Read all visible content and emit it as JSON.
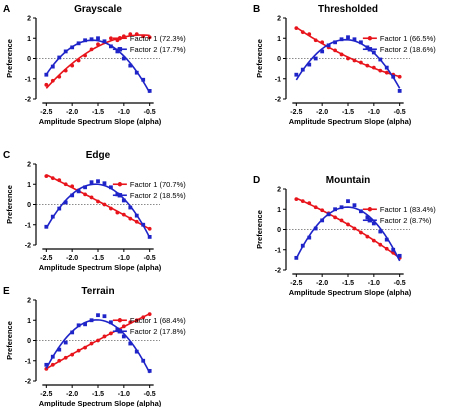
{
  "colors": {
    "factor1": "#e8141c",
    "factor2": "#1f24c8",
    "axis": "#000000",
    "zero_line": "#666666"
  },
  "chart_data": [
    {
      "type": "scatter",
      "letter": "A",
      "title": "Grayscale",
      "xlabel": "Amplitude Spectrum Slope (alpha)",
      "ylabel": "Preference",
      "xlim": [
        -2.7,
        -0.3
      ],
      "ylim": [
        -2,
        2
      ],
      "xticks": [
        "-2.5",
        "-2.0",
        "-1.5",
        "-1.0",
        "-0.5"
      ],
      "xtick_values": [
        -2.5,
        -2.0,
        -1.5,
        -1.0,
        -0.5
      ],
      "yticks": [
        "-2",
        "-1",
        "0",
        "1",
        "2"
      ],
      "ytick_values": [
        -2,
        -1,
        0,
        1,
        2
      ],
      "zero_line": "dotted",
      "legend_position": "right",
      "series": [
        {
          "name": "Factor 1 (72.3%)",
          "marker": "circle",
          "x": [
            -2.5,
            -2.375,
            -2.25,
            -2.125,
            -2.0,
            -1.875,
            -1.75,
            -1.625,
            -1.5,
            -1.375,
            -1.25,
            -1.125,
            -1.0,
            -0.875,
            -0.75,
            -0.625,
            -0.5
          ],
          "y": [
            -1.3,
            -1.1,
            -0.9,
            -0.6,
            -0.35,
            -0.1,
            0.15,
            0.45,
            0.7,
            0.8,
            1.0,
            0.9,
            1.1,
            1.2,
            1.2,
            1.1,
            1.05
          ]
        },
        {
          "name": "Factor 2 (17.7%)",
          "marker": "square",
          "x": [
            -2.5,
            -2.375,
            -2.25,
            -2.125,
            -2.0,
            -1.875,
            -1.75,
            -1.625,
            -1.5,
            -1.375,
            -1.25,
            -1.125,
            -1.0,
            -0.875,
            -0.75,
            -0.625,
            -0.5
          ],
          "y": [
            -0.8,
            -0.4,
            0.05,
            0.35,
            0.55,
            0.75,
            0.9,
            0.95,
            1.0,
            0.85,
            0.6,
            0.35,
            0.0,
            -0.35,
            -0.7,
            -1.05,
            -1.6
          ]
        }
      ]
    },
    {
      "type": "scatter",
      "letter": "B",
      "title": "Thresholded",
      "xlabel": "Amplitude Spectrum Slope (alpha)",
      "ylabel": "Preference",
      "xlim": [
        -2.7,
        -0.3
      ],
      "ylim": [
        -2,
        2
      ],
      "xticks": [
        "-2.5",
        "-2.0",
        "-1.5",
        "-1.0",
        "-0.5"
      ],
      "xtick_values": [
        -2.5,
        -2.0,
        -1.5,
        -1.0,
        -0.5
      ],
      "yticks": [
        "-2",
        "-1",
        "0",
        "1",
        "2"
      ],
      "ytick_values": [
        -2,
        -1,
        0,
        1,
        2
      ],
      "zero_line": "dotted",
      "legend_position": "right",
      "series": [
        {
          "name": "Factor 1 (66.5%)",
          "marker": "circle",
          "x": [
            -2.5,
            -2.375,
            -2.25,
            -2.125,
            -2.0,
            -1.875,
            -1.75,
            -1.625,
            -1.5,
            -1.375,
            -1.25,
            -1.125,
            -1.0,
            -0.875,
            -0.75,
            -0.625,
            -0.5
          ],
          "y": [
            1.5,
            1.3,
            1.2,
            0.9,
            0.8,
            0.55,
            0.4,
            0.2,
            0.0,
            -0.1,
            -0.2,
            -0.35,
            -0.45,
            -0.6,
            -0.7,
            -0.8,
            -0.9
          ]
        },
        {
          "name": "Factor 2 (18.6%)",
          "marker": "square",
          "x": [
            -2.5,
            -2.375,
            -2.25,
            -2.125,
            -2.0,
            -1.875,
            -1.75,
            -1.625,
            -1.5,
            -1.375,
            -1.25,
            -1.125,
            -1.0,
            -0.875,
            -0.75,
            -0.625,
            -0.5
          ],
          "y": [
            -0.8,
            -0.55,
            -0.3,
            0.0,
            0.35,
            0.65,
            0.8,
            0.95,
            1.05,
            0.95,
            0.8,
            0.55,
            0.3,
            -0.05,
            -0.45,
            -0.9,
            -1.6
          ]
        }
      ]
    },
    {
      "type": "scatter",
      "letter": "C",
      "title": "Edge",
      "xlabel": "Amplitude Spectrum Slope (alpha)",
      "ylabel": "Preference",
      "xlim": [
        -2.7,
        -0.3
      ],
      "ylim": [
        -2,
        2
      ],
      "xticks": [
        "-2.5",
        "-2.0",
        "-1.5",
        "-1.0",
        "-0.5"
      ],
      "xtick_values": [
        -2.5,
        -2.0,
        -1.5,
        -1.0,
        -0.5
      ],
      "yticks": [
        "-2",
        "-1",
        "0",
        "1",
        "2"
      ],
      "ytick_values": [
        -2,
        -1,
        0,
        1,
        2
      ],
      "zero_line": "dotted",
      "legend_position": "right",
      "series": [
        {
          "name": "Factor 1 (70.7%)",
          "marker": "circle",
          "x": [
            -2.5,
            -2.375,
            -2.25,
            -2.125,
            -2.0,
            -1.875,
            -1.75,
            -1.625,
            -1.5,
            -1.375,
            -1.25,
            -1.125,
            -1.0,
            -0.875,
            -0.75,
            -0.625,
            -0.5
          ],
          "y": [
            1.4,
            1.3,
            1.2,
            1.0,
            0.9,
            0.7,
            0.5,
            0.35,
            0.15,
            0.0,
            -0.2,
            -0.4,
            -0.5,
            -0.7,
            -0.85,
            -1.0,
            -1.2
          ]
        },
        {
          "name": "Factor 2 (18.5%)",
          "marker": "square",
          "x": [
            -2.5,
            -2.375,
            -2.25,
            -2.125,
            -2.0,
            -1.875,
            -1.75,
            -1.625,
            -1.5,
            -1.375,
            -1.25,
            -1.125,
            -1.0,
            -0.875,
            -0.75,
            -0.625,
            -0.5
          ],
          "y": [
            -1.1,
            -0.6,
            -0.2,
            0.1,
            0.45,
            0.65,
            0.85,
            1.1,
            1.15,
            1.05,
            0.85,
            0.5,
            0.2,
            -0.15,
            -0.55,
            -1.0,
            -1.6
          ]
        }
      ]
    },
    {
      "type": "scatter",
      "letter": "D",
      "title": "Mountain",
      "xlabel": "Amplitude Spectrum Slope (alpha)",
      "ylabel": "Preference",
      "xlim": [
        -2.7,
        -0.3
      ],
      "ylim": [
        -2,
        2
      ],
      "xticks": [
        "-2.5",
        "-2.0",
        "-1.5",
        "-1.0",
        "-0.5"
      ],
      "xtick_values": [
        -2.5,
        -2.0,
        -1.5,
        -1.0,
        -0.5
      ],
      "yticks": [
        "-2",
        "-1",
        "0",
        "1",
        "2"
      ],
      "ytick_values": [
        -2,
        -1,
        0,
        1,
        2
      ],
      "zero_line": "dotted",
      "legend_position": "right",
      "series": [
        {
          "name": "Factor 1 (83.4%)",
          "marker": "circle",
          "x": [
            -2.5,
            -2.375,
            -2.25,
            -2.125,
            -2.0,
            -1.875,
            -1.75,
            -1.625,
            -1.5,
            -1.375,
            -1.25,
            -1.125,
            -1.0,
            -0.875,
            -0.75,
            -0.625,
            -0.5
          ],
          "y": [
            1.5,
            1.4,
            1.3,
            1.1,
            0.95,
            0.8,
            0.6,
            0.45,
            0.25,
            0.05,
            -0.15,
            -0.35,
            -0.55,
            -0.75,
            -0.95,
            -1.15,
            -1.4
          ]
        },
        {
          "name": "Factor 2 (8.7%)",
          "marker": "square",
          "x": [
            -2.5,
            -2.375,
            -2.25,
            -2.125,
            -2.0,
            -1.875,
            -1.75,
            -1.625,
            -1.5,
            -1.375,
            -1.25,
            -1.125,
            -1.0,
            -0.875,
            -0.75,
            -0.625,
            -0.5
          ],
          "y": [
            -1.4,
            -0.8,
            -0.4,
            0.05,
            0.45,
            0.75,
            1.0,
            1.1,
            1.4,
            1.2,
            0.9,
            0.6,
            0.3,
            -0.1,
            -0.5,
            -1.0,
            -1.3
          ]
        }
      ]
    },
    {
      "type": "scatter",
      "letter": "E",
      "title": "Terrain",
      "xlabel": "Amplitude Spectrum Slope (alpha)",
      "ylabel": "Preference",
      "xlim": [
        -2.7,
        -0.3
      ],
      "ylim": [
        -2,
        2
      ],
      "xticks": [
        "-2.5",
        "-2.0",
        "-1.5",
        "-1.0",
        "-0.5"
      ],
      "xtick_values": [
        -2.5,
        -2.0,
        -1.5,
        -1.0,
        -0.5
      ],
      "yticks": [
        "-2",
        "-1",
        "0",
        "1",
        "2"
      ],
      "ytick_values": [
        -2,
        -1,
        0,
        1,
        2
      ],
      "zero_line": "dotted",
      "legend_position": "right",
      "series": [
        {
          "name": "Factor 1 (68.4%)",
          "marker": "circle",
          "x": [
            -2.5,
            -2.375,
            -2.25,
            -2.125,
            -2.0,
            -1.875,
            -1.75,
            -1.625,
            -1.5,
            -1.375,
            -1.25,
            -1.125,
            -1.0,
            -0.875,
            -0.75,
            -0.625,
            -0.5
          ],
          "y": [
            -1.4,
            -1.2,
            -1.0,
            -0.85,
            -0.7,
            -0.5,
            -0.35,
            -0.15,
            0.0,
            0.2,
            0.35,
            0.5,
            0.7,
            0.9,
            1.0,
            1.15,
            1.3
          ]
        },
        {
          "name": "Factor 2 (17.8%)",
          "marker": "square",
          "x": [
            -2.5,
            -2.375,
            -2.25,
            -2.125,
            -2.0,
            -1.875,
            -1.75,
            -1.625,
            -1.5,
            -1.375,
            -1.25,
            -1.125,
            -1.0,
            -0.875,
            -0.75,
            -0.625,
            -0.5
          ],
          "y": [
            -1.2,
            -0.8,
            -0.45,
            -0.1,
            0.4,
            0.75,
            0.8,
            1.0,
            1.25,
            1.2,
            0.9,
            0.55,
            0.2,
            -0.15,
            -0.55,
            -1.0,
            -1.5
          ]
        }
      ]
    }
  ]
}
